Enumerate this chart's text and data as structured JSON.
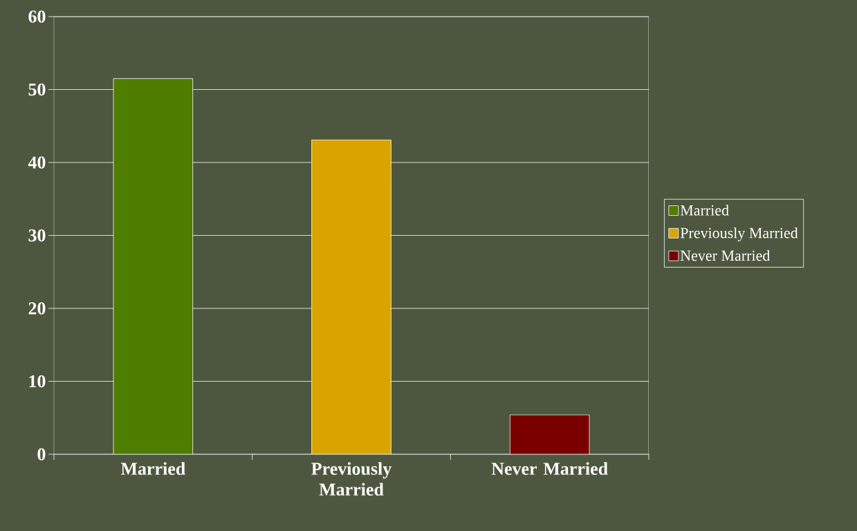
{
  "chart_data": {
    "type": "bar",
    "categories": [
      "Married",
      "Previously Married",
      "Never Married"
    ],
    "series": [
      {
        "name": "Married",
        "color": "#4e7d00",
        "values": [
          51.5,
          null,
          null
        ]
      },
      {
        "name": "Previously Married",
        "color": "#d9a400",
        "values": [
          null,
          43.1,
          null
        ]
      },
      {
        "name": "Never Married",
        "color": "#7a0000",
        "values": [
          null,
          null,
          5.4
        ]
      }
    ],
    "ylim": [
      0,
      60
    ],
    "yticks": [
      0,
      10,
      20,
      30,
      40,
      50,
      60
    ],
    "grid": "y",
    "legend": "right"
  }
}
